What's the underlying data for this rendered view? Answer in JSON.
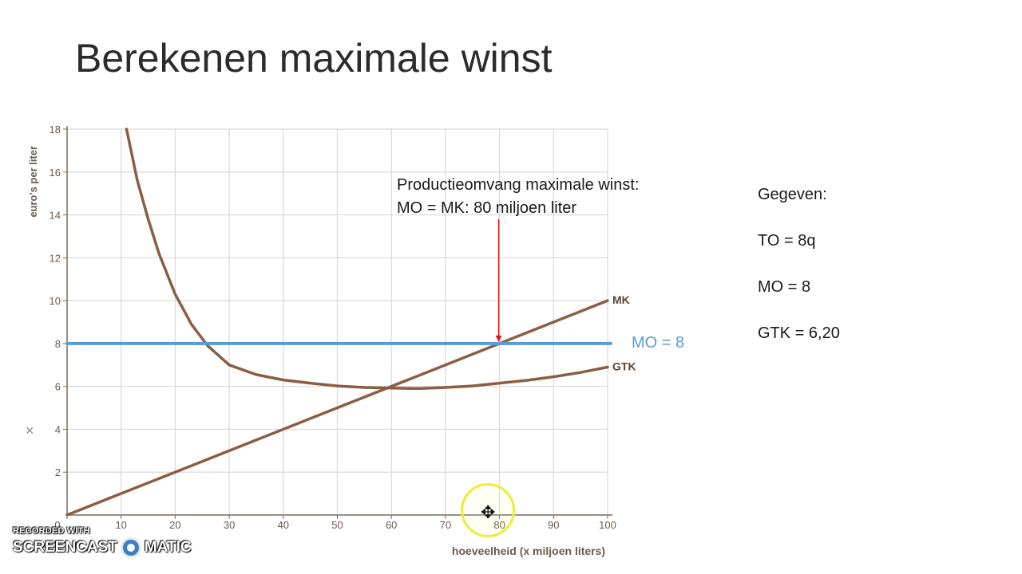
{
  "slide": {
    "title": "Berekenen maximale winst",
    "annotation_line1": "Productieomvang maximale winst:",
    "annotation_line2": "MO = MK: 80 miljoen liter",
    "mo_label": "MO = 8",
    "close_symbol": "×",
    "cursor_icon": "move-cursor-icon"
  },
  "given": {
    "heading": "Gegeven:",
    "items": [
      "TO = 8q",
      "MO = 8",
      "GTK = 6,20"
    ]
  },
  "watermark": {
    "line1": "RECORDED WITH",
    "brand_left": "SCREENCAST",
    "brand_right": "MATIC"
  },
  "colors": {
    "curve": "#8b5e44",
    "mo_line": "#5b9bd5",
    "arrow": "#d7191c",
    "grid": "#d9d9d9",
    "cursor_ring": "#ecec3a"
  },
  "chart_data": {
    "type": "line",
    "xlabel": "hoeveelheid (x miljoen liters)",
    "ylabel": "euro's per liter",
    "xlim": [
      0,
      100
    ],
    "ylim": [
      0,
      18
    ],
    "x_ticks": [
      0,
      10,
      20,
      30,
      40,
      50,
      60,
      70,
      80,
      90,
      100
    ],
    "y_ticks": [
      2,
      4,
      6,
      8,
      10,
      12,
      14,
      16,
      18
    ],
    "grid": true,
    "series": [
      {
        "name": "MK",
        "x": [
          0,
          100
        ],
        "y": [
          0,
          10
        ]
      },
      {
        "name": "GTK",
        "x": [
          11,
          13,
          15,
          17,
          20,
          23,
          26,
          30,
          35,
          40,
          45,
          50,
          55,
          60,
          65,
          70,
          75,
          80,
          85,
          90,
          95,
          100
        ],
        "y": [
          18,
          15.6,
          13.8,
          12.2,
          10.3,
          8.9,
          7.9,
          7.0,
          6.55,
          6.3,
          6.15,
          6.02,
          5.95,
          5.92,
          5.9,
          5.95,
          6.02,
          6.15,
          6.28,
          6.45,
          6.65,
          6.9
        ]
      },
      {
        "name": "MO = 8",
        "x": [
          0,
          100
        ],
        "y": [
          8,
          8
        ]
      }
    ],
    "annotation_arrow": {
      "x": 80,
      "y_from": 13.8,
      "y_to": 8
    }
  }
}
